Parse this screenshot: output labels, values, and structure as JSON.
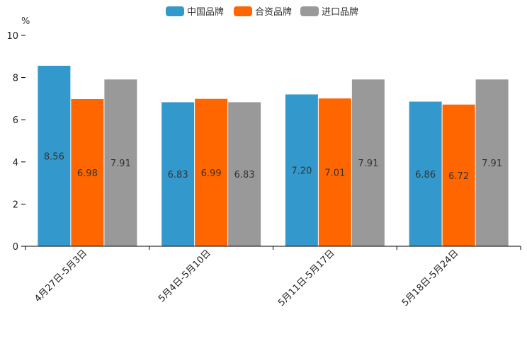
{
  "chart_data": {
    "type": "bar",
    "title": "",
    "xlabel": "",
    "ylabel": "%",
    "ylim": [
      0,
      10
    ],
    "yticks": [
      0,
      2,
      4,
      6,
      8,
      10
    ],
    "grid": false,
    "legend_position": "top-center",
    "categories": [
      "4月27日-5月3日",
      "5月4日-5月10日",
      "5月11日-5月17日",
      "5月18日-5月24日"
    ],
    "series": [
      {
        "name": "中国品牌",
        "color": "#3399cc",
        "values": [
          8.56,
          6.83,
          7.2,
          6.86
        ],
        "labels": [
          "8.56",
          "6.83",
          "7.20",
          "6.86"
        ]
      },
      {
        "name": "合资品牌",
        "color": "#ff6600",
        "values": [
          6.98,
          6.99,
          7.01,
          6.72
        ],
        "labels": [
          "6.98",
          "6.99",
          "7.01",
          "6.72"
        ]
      },
      {
        "name": "进口品牌",
        "color": "#999999",
        "values": [
          7.91,
          6.83,
          7.91,
          7.91
        ],
        "labels": [
          "7.91",
          "6.83",
          "7.91",
          "7.91"
        ]
      }
    ]
  }
}
